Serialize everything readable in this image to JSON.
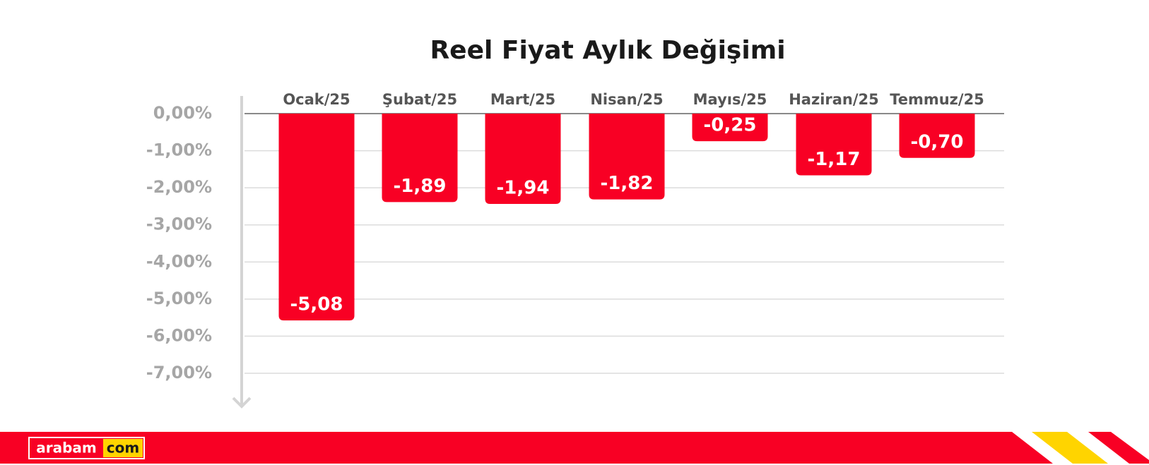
{
  "chart_data": {
    "type": "bar",
    "title": "Reel Fiyat Aylık Değişimi",
    "categories": [
      "Ocak/25",
      "Şubat/25",
      "Mart/25",
      "Nisan/25",
      "Mayıs/25",
      "Haziran/25",
      "Temmuz/25"
    ],
    "values": [
      -5.08,
      -1.89,
      -1.94,
      -1.82,
      -0.25,
      -1.17,
      -0.7
    ],
    "value_labels": [
      "-5,08",
      "-1,89",
      "-1,94",
      "-1,82",
      "-0,25",
      "-1,17",
      "-0,70"
    ],
    "color": "#f80024",
    "ylim": [
      0,
      -7
    ],
    "yticks": [
      {
        "value": 0,
        "label": "0,00%"
      },
      {
        "value": -1,
        "label": "-1,00%"
      },
      {
        "value": -2,
        "label": "-2,00%"
      },
      {
        "value": -3,
        "label": "-3,00%"
      },
      {
        "value": -4,
        "label": "-4,00%"
      },
      {
        "value": -5,
        "label": "-5,00%"
      },
      {
        "value": -6,
        "label": "-6,00%"
      },
      {
        "value": -7,
        "label": "-7,00%"
      }
    ],
    "grid": true
  },
  "footer": {
    "logo_left": "arabam",
    "logo_right": "com"
  }
}
